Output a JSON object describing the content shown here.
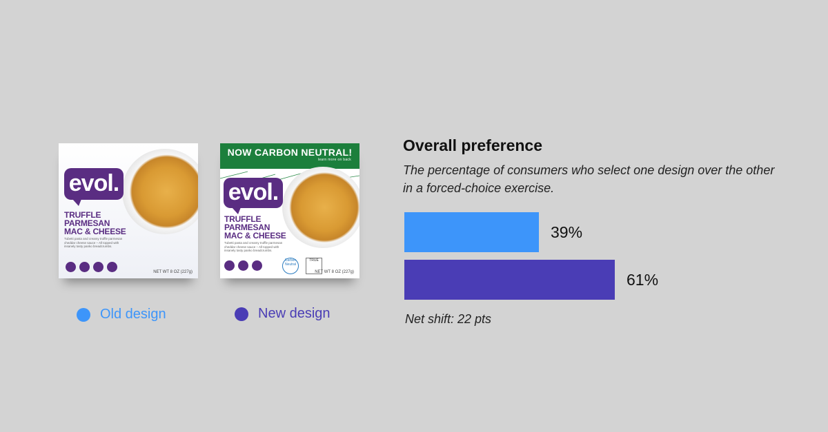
{
  "colors": {
    "old": "#3d95fa",
    "new": "#4a3db5",
    "brand_purple": "#5a2d82",
    "banner_green": "#1c7f3c"
  },
  "packages": {
    "old": {
      "logo": "evol.",
      "product_name": "TRUFFLE\nPARMESAN\nMAC & CHEESE",
      "description": "Tubetti pasta and creamy truffle parmesan cheddar cheese sauce – All topped with insanely tasty panko breadcrumbs.",
      "net_weight": "NET WT 8 OZ (227g)"
    },
    "new": {
      "banner": "NOW CARBON NEUTRAL!",
      "banner_sub": "learn more on back",
      "logo": "evol.",
      "product_name": "TRUFFLE\nPARMESAN\nMAC & CHEESE",
      "description": "Tubetti pasta and creamy truffle parmesan cheddar cheese sauce – All topped with insanely tasty panko breadcrumbs.",
      "net_weight": "NET WT 8 OZ (227g)",
      "cert_carbon": "Carbon Neutral",
      "cert_true": "TRUE"
    }
  },
  "legend": [
    {
      "label": "Old design",
      "color": "#3d95fa"
    },
    {
      "label": "New design",
      "color": "#4a3db5"
    }
  ],
  "chart_data": {
    "type": "bar",
    "orientation": "horizontal",
    "title": "Overall preference",
    "subtitle": "The percentage of consumers who select one design over the other in a forced-choice exercise.",
    "categories": [
      "Old design",
      "New design"
    ],
    "values": [
      39,
      61
    ],
    "value_labels": [
      "39%",
      "61%"
    ],
    "colors": [
      "#3d95fa",
      "#4a3db5"
    ],
    "xlim": [
      0,
      100
    ],
    "grid": false,
    "annotation": "Net shift: 22 pts"
  }
}
